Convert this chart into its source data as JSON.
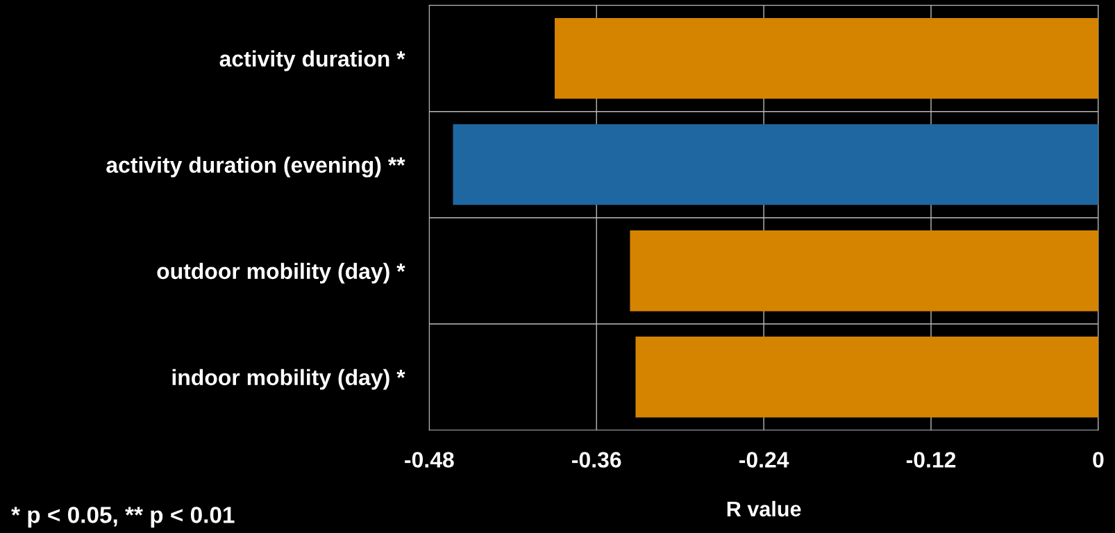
{
  "chart_data": {
    "type": "bar",
    "orientation": "horizontal",
    "categories": [
      "activity duration *",
      "activity duration (evening) **",
      "outdoor mobility (day) *",
      "indoor mobility (day) *"
    ],
    "values": [
      -0.39,
      -0.463,
      -0.336,
      -0.332
    ],
    "colors": [
      "#d58400",
      "#1f67a0",
      "#d58400",
      "#d58400"
    ],
    "xlim": [
      -0.48,
      0
    ],
    "xticks": [
      -0.48,
      -0.36,
      -0.24,
      -0.12,
      0
    ],
    "xlabel": "R value",
    "grid": true,
    "annotations": [
      "* p < 0.05, ** p < 0.01"
    ]
  }
}
